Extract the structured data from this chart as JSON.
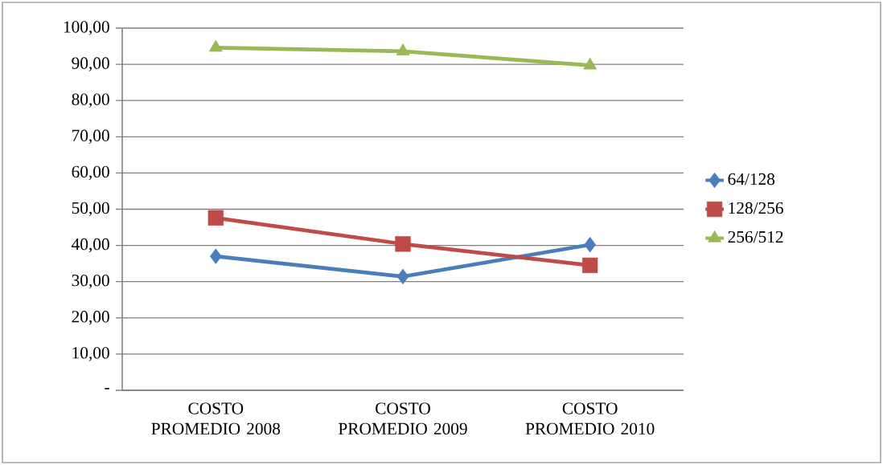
{
  "chart_data": {
    "type": "line",
    "categories": [
      "COSTO PROMEDIO 2008",
      "COSTO PROMEDIO 2009",
      "COSTO PROMEDIO 2010"
    ],
    "series": [
      {
        "name": "64/128",
        "color": "#4a7ebb",
        "marker": "diamond",
        "values": [
          37.0,
          31.4,
          40.2
        ]
      },
      {
        "name": "128/256",
        "color": "#be4b48",
        "marker": "square",
        "values": [
          47.6,
          40.4,
          34.5
        ]
      },
      {
        "name": "256/512",
        "color": "#98b954",
        "marker": "triangle",
        "values": [
          94.6,
          93.6,
          89.7
        ]
      }
    ],
    "ylim": [
      0,
      100
    ],
    "yticks": [
      {
        "value": 0,
        "label": "-"
      },
      {
        "value": 10,
        "label": "10,00"
      },
      {
        "value": 20,
        "label": "20,00"
      },
      {
        "value": 30,
        "label": "30,00"
      },
      {
        "value": 40,
        "label": "40,00"
      },
      {
        "value": 50,
        "label": "50,00"
      },
      {
        "value": 60,
        "label": "60,00"
      },
      {
        "value": 70,
        "label": "70,00"
      },
      {
        "value": 80,
        "label": "80,00"
      },
      {
        "value": 90,
        "label": "90,00"
      },
      {
        "value": 100,
        "label": "100,00"
      }
    ],
    "grid": "y",
    "legend": "right",
    "line_style": "solid"
  }
}
